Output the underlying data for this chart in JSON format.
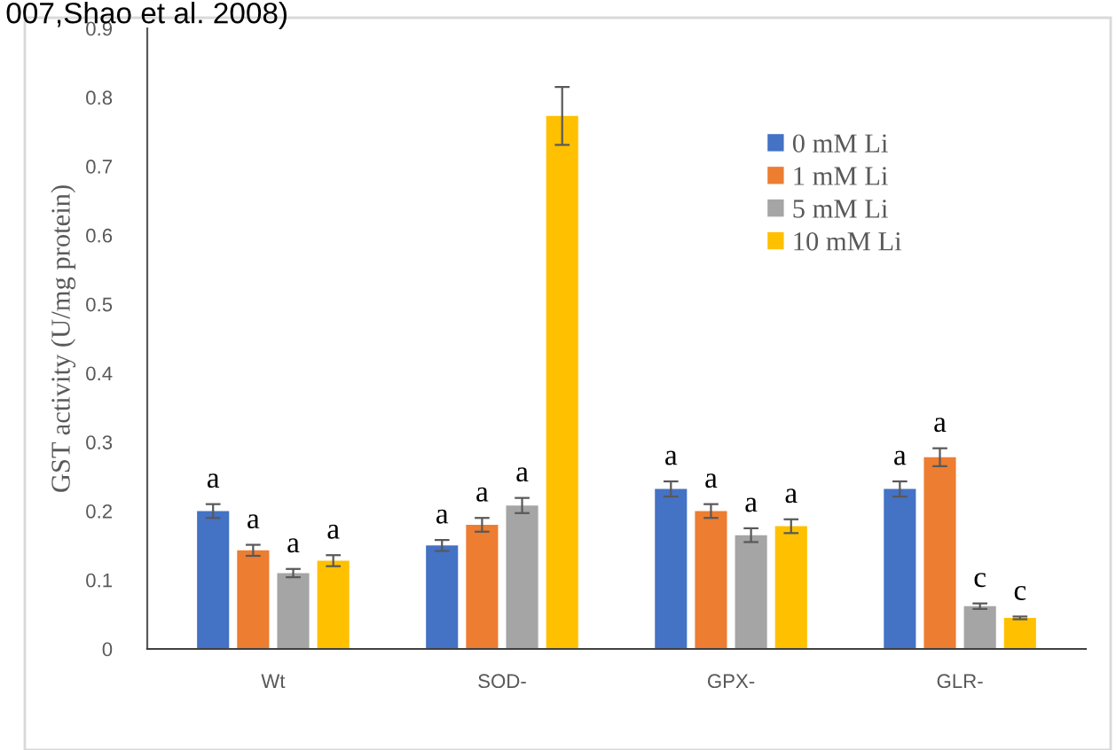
{
  "chart_data": {
    "type": "bar",
    "categories": [
      "Wt",
      "SOD-",
      "GPX-",
      "GLR-"
    ],
    "ylabel": "GST activity (U/mg protein)",
    "ylim": [
      0,
      0.9
    ],
    "yticks": [
      0,
      0.1,
      0.2,
      0.3,
      0.4,
      0.5,
      0.6,
      0.7,
      0.8,
      0.9
    ],
    "grid": false,
    "legend": "top right",
    "annotations": [
      "007,Shao et al. 2008)"
    ],
    "series": [
      {
        "name": "0 mM Li",
        "color": "#4472c4",
        "values": [
          0.2,
          0.15,
          0.232,
          0.232
        ],
        "errors": [
          0.01,
          0.008,
          0.011,
          0.011
        ],
        "value_labels": [
          "a",
          "a",
          "a",
          "a"
        ]
      },
      {
        "name": "1 mM Li",
        "color": "#ed7d31",
        "values": [
          0.143,
          0.18,
          0.2,
          0.278
        ],
        "errors": [
          0.008,
          0.01,
          0.01,
          0.013
        ],
        "value_labels": [
          "a",
          "a",
          "a",
          "a"
        ]
      },
      {
        "name": "5 mM Li",
        "color": "#a5a5a5",
        "values": [
          0.11,
          0.208,
          0.165,
          0.062
        ],
        "errors": [
          0.006,
          0.011,
          0.01,
          0.004
        ],
        "value_labels": [
          "a",
          "a",
          "a",
          "c"
        ]
      },
      {
        "name": "10 mM Li",
        "color": "#ffc000",
        "values": [
          0.128,
          0.773,
          0.178,
          0.045
        ],
        "errors": [
          0.008,
          0.042,
          0.01,
          0.002
        ],
        "value_labels": [
          "a",
          null,
          "a",
          "c"
        ]
      }
    ]
  }
}
